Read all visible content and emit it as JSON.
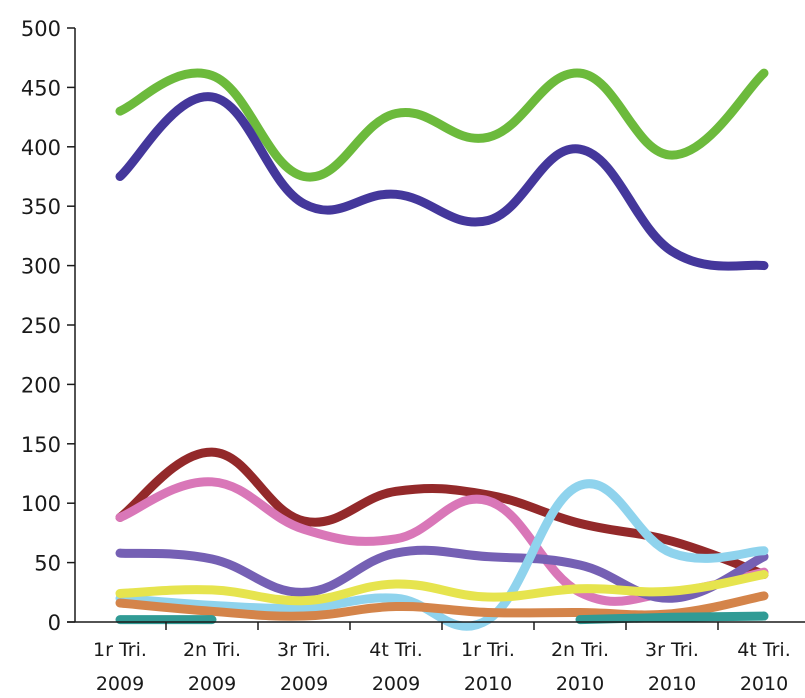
{
  "chart_data": {
    "type": "line",
    "title": "",
    "xlabel": "",
    "ylabel": "",
    "ylim": [
      0,
      500
    ],
    "yticks": [
      0,
      50,
      100,
      150,
      200,
      250,
      300,
      350,
      400,
      450,
      500
    ],
    "grid": false,
    "legend": "none",
    "categories": [
      [
        "1r Tri.",
        "2009"
      ],
      [
        "2n Tri.",
        "2009"
      ],
      [
        "3r Tri.",
        "2009"
      ],
      [
        "4t Tri.",
        "2009"
      ],
      [
        "1r Tri.",
        "2010"
      ],
      [
        "2n Tri.",
        "2010"
      ],
      [
        "3r Tri.",
        "2010"
      ],
      [
        "4t Tri.",
        "2010"
      ]
    ],
    "series": [
      {
        "color": "#6cba3c",
        "values": [
          430,
          460,
          375,
          428,
          408,
          462,
          393,
          462
        ]
      },
      {
        "color": "#44379b",
        "values": [
          375,
          442,
          352,
          360,
          338,
          398,
          312,
          300
        ]
      },
      {
        "color": "#93292a",
        "values": [
          88,
          143,
          85,
          110,
          107,
          83,
          68,
          40
        ]
      },
      {
        "color": "#d977b8",
        "values": [
          88,
          118,
          78,
          70,
          102,
          25,
          25,
          42
        ]
      },
      {
        "color": "#7560b4",
        "values": [
          58,
          53,
          25,
          58,
          55,
          48,
          20,
          55
        ]
      },
      {
        "color": "#8fd3ed",
        "values": [
          20,
          14,
          12,
          20,
          2,
          115,
          58,
          60
        ]
      },
      {
        "color": "#e6e44e",
        "values": [
          24,
          27,
          18,
          32,
          21,
          28,
          26,
          40
        ]
      },
      {
        "color": "#d4844a",
        "values": [
          16,
          9,
          5,
          13,
          8,
          8,
          7,
          22
        ]
      },
      {
        "color": "#319b95",
        "values": [
          2,
          2,
          null,
          null,
          null,
          2,
          4,
          5
        ]
      }
    ]
  }
}
